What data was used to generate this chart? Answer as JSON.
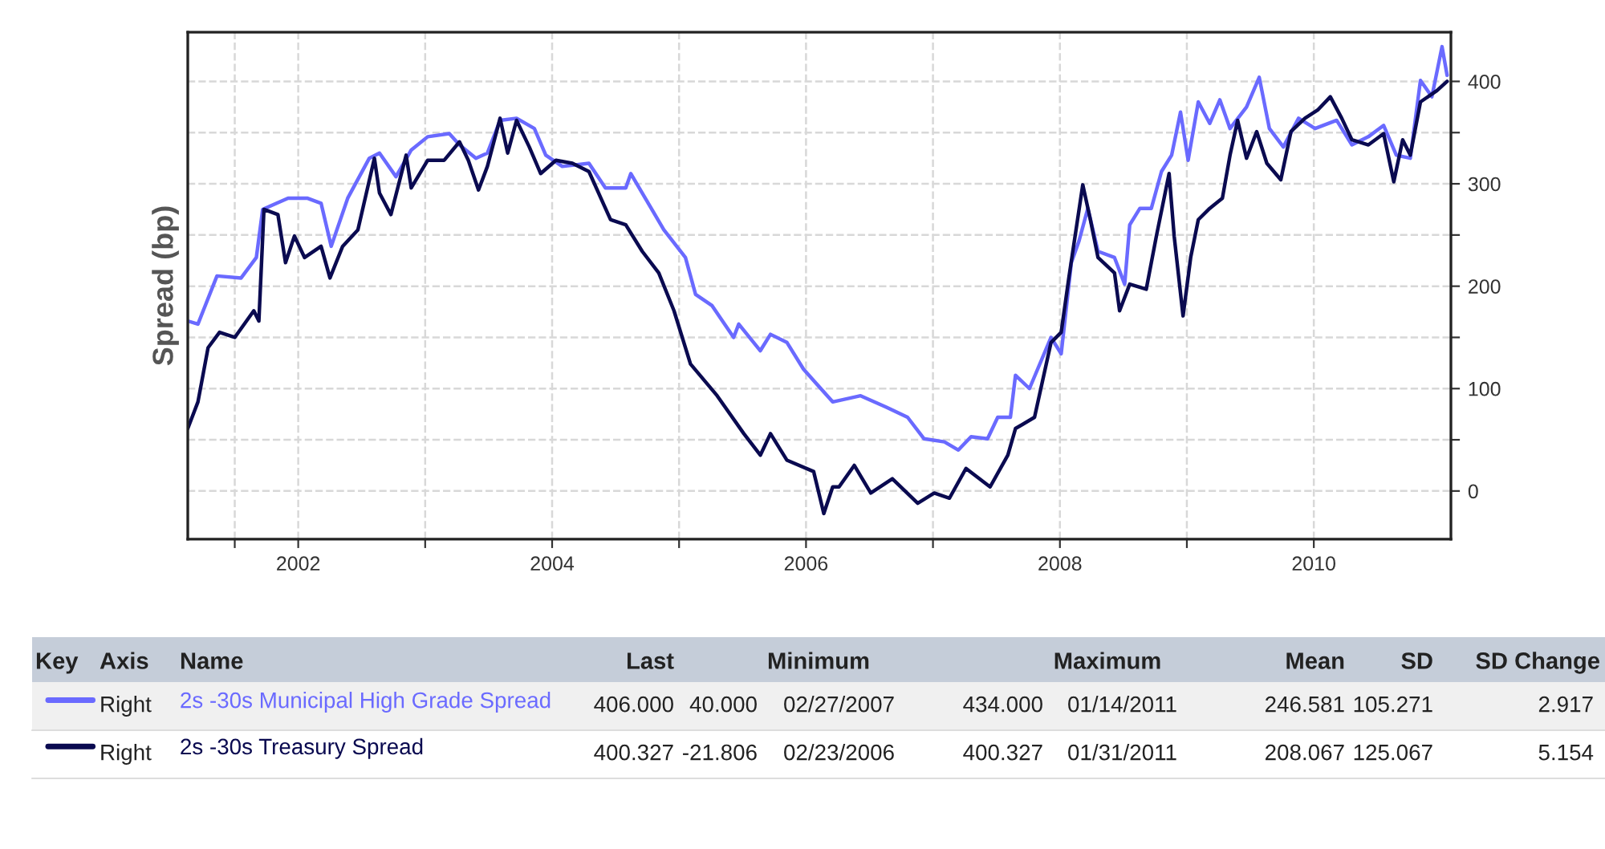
{
  "chart_data": {
    "type": "line",
    "ylabel": "Spread (bp)",
    "xlim": [
      2001.13,
      2011.08
    ],
    "ylim": [
      -47,
      448
    ],
    "xticks": [
      {
        "value": 2001.5,
        "label": null
      },
      2002,
      {
        "value": 2003,
        "label": null
      },
      2004,
      {
        "value": 2005,
        "label": null
      },
      2006,
      {
        "value": 2007,
        "label": null
      },
      2008,
      {
        "value": 2009,
        "label": null
      },
      2010
    ],
    "yticks": [
      0,
      {
        "value": 50,
        "label": null
      },
      100,
      {
        "value": 150,
        "label": null
      },
      200,
      {
        "value": 250,
        "label": null
      },
      300,
      {
        "value": 350,
        "label": null
      },
      400
    ],
    "grid": true,
    "legend": "bottom",
    "line_style": "solid",
    "marker": "none",
    "series": [
      {
        "name": "2s -30s Municipal High Grade Spread",
        "color": "#6a6aff",
        "x": [
          2001.13,
          2001.21,
          2001.36,
          2001.55,
          2001.67,
          2001.72,
          2001.92,
          2002.07,
          2002.18,
          2002.26,
          2002.39,
          2002.56,
          2002.64,
          2002.77,
          2002.89,
          2003.02,
          2003.19,
          2003.27,
          2003.4,
          2003.49,
          2003.59,
          2003.72,
          2003.86,
          2003.95,
          2004.08,
          2004.29,
          2004.42,
          2004.58,
          2004.62,
          2004.71,
          2004.88,
          2005.05,
          2005.13,
          2005.26,
          2005.43,
          2005.47,
          2005.64,
          2005.72,
          2005.85,
          2005.98,
          2006.21,
          2006.43,
          2006.63,
          2006.8,
          2006.93,
          2007.09,
          2007.2,
          2007.3,
          2007.43,
          2007.51,
          2007.61,
          2007.65,
          2007.76,
          2007.93,
          2008.01,
          2008.09,
          2008.15,
          2008.22,
          2008.3,
          2008.43,
          2008.51,
          2008.55,
          2008.63,
          2008.72,
          2008.8,
          2008.88,
          2008.95,
          2009.01,
          2009.09,
          2009.18,
          2009.26,
          2009.34,
          2009.47,
          2009.57,
          2009.65,
          2009.76,
          2009.88,
          2010.01,
          2010.18,
          2010.3,
          2010.43,
          2010.55,
          2010.65,
          2010.76,
          2010.84,
          2010.93,
          2011.01,
          2011.05
        ],
        "values": [
          166,
          163,
          210,
          208,
          228,
          275,
          286,
          286,
          281,
          239,
          286,
          325,
          330,
          307,
          333,
          346,
          349,
          338,
          325,
          330,
          362,
          364,
          354,
          328,
          317,
          320,
          296,
          296,
          310,
          291,
          255,
          228,
          192,
          181,
          150,
          163,
          137,
          153,
          145,
          119,
          87,
          93,
          82,
          72,
          51,
          48,
          40,
          53,
          51,
          72,
          72,
          113,
          100,
          150,
          134,
          223,
          244,
          276,
          234,
          228,
          202,
          260,
          276,
          276,
          312,
          328,
          370,
          323,
          380,
          359,
          382,
          354,
          375,
          404,
          354,
          336,
          364,
          354,
          362,
          338,
          346,
          357,
          328,
          325,
          401,
          385,
          434,
          406
        ]
      },
      {
        "name": "2s -30s Treasury Spread",
        "color": "#0a0a50",
        "x": [
          2001.13,
          2001.21,
          2001.29,
          2001.38,
          2001.5,
          2001.65,
          2001.69,
          2001.73,
          2001.84,
          2001.9,
          2001.97,
          2002.05,
          2002.18,
          2002.25,
          2002.35,
          2002.47,
          2002.6,
          2002.64,
          2002.73,
          2002.85,
          2002.89,
          2003.02,
          2003.15,
          2003.27,
          2003.34,
          2003.42,
          2003.49,
          2003.59,
          2003.65,
          2003.72,
          2003.82,
          2003.91,
          2004.03,
          2004.16,
          2004.29,
          2004.46,
          2004.58,
          2004.71,
          2004.84,
          2004.96,
          2005.09,
          2005.3,
          2005.51,
          2005.64,
          2005.72,
          2005.85,
          2006.06,
          2006.14,
          2006.21,
          2006.26,
          2006.38,
          2006.51,
          2006.68,
          2006.88,
          2007.01,
          2007.13,
          2007.26,
          2007.45,
          2007.59,
          2007.65,
          2007.8,
          2007.93,
          2008.01,
          2008.07,
          2008.18,
          2008.24,
          2008.3,
          2008.43,
          2008.47,
          2008.55,
          2008.68,
          2008.76,
          2008.86,
          2008.9,
          2008.97,
          2009.03,
          2009.09,
          2009.18,
          2009.28,
          2009.34,
          2009.4,
          2009.47,
          2009.55,
          2009.63,
          2009.74,
          2009.82,
          2009.93,
          2010.03,
          2010.13,
          2010.22,
          2010.3,
          2010.43,
          2010.55,
          2010.63,
          2010.7,
          2010.76,
          2010.84,
          2010.97,
          2011.05
        ],
        "values": [
          61,
          87,
          140,
          155,
          150,
          176,
          166,
          275,
          270,
          223,
          249,
          228,
          239,
          208,
          239,
          255,
          325,
          291,
          270,
          328,
          296,
          323,
          323,
          341,
          323,
          294,
          317,
          364,
          330,
          362,
          336,
          310,
          323,
          320,
          312,
          265,
          260,
          234,
          213,
          176,
          124,
          93,
          56,
          35,
          56,
          30,
          19,
          -22,
          4,
          4,
          25,
          -2,
          12,
          -12,
          -2,
          -7,
          22,
          4,
          35,
          61,
          72,
          145,
          155,
          208,
          299,
          265,
          228,
          213,
          176,
          202,
          197,
          249,
          310,
          249,
          171,
          228,
          265,
          276,
          286,
          328,
          362,
          325,
          351,
          320,
          304,
          351,
          364,
          372,
          385,
          364,
          343,
          338,
          349,
          302,
          343,
          328,
          380,
          391,
          400
        ]
      }
    ],
    "annotations": [
      "Key",
      "Axis",
      "Name",
      "Last",
      "Minimum",
      "Maximum",
      "Mean",
      "SD",
      "SD Change",
      "Right",
      "406.000",
      "40.000",
      "02/27/2007",
      "434.000",
      "01/14/2011",
      "246.581",
      "105.271",
      "2.917",
      "Right",
      "400.327",
      "-21.806",
      "02/23/2006",
      "400.327",
      "01/31/2011",
      "208.067",
      "125.067",
      "5.154"
    ]
  }
}
